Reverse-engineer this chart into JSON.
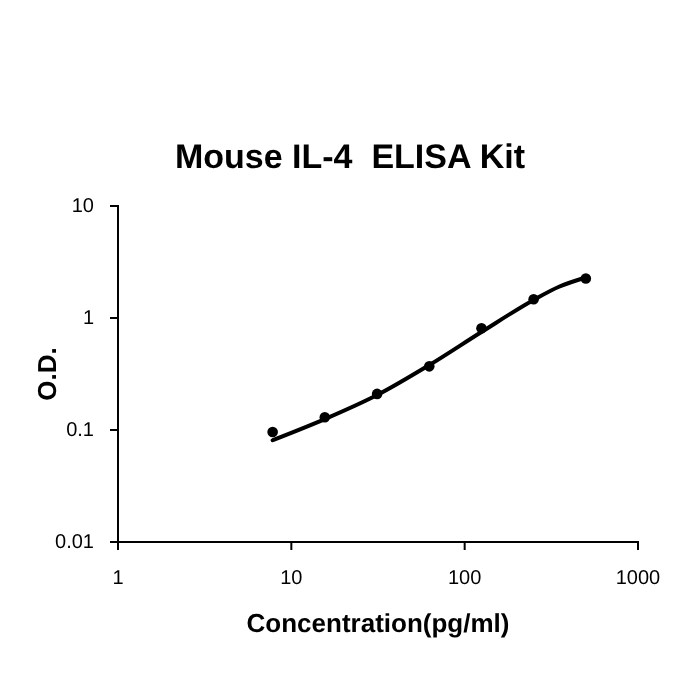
{
  "chart_data": {
    "type": "scatter",
    "title": "Mouse IL-4  ELISA Kit",
    "xlabel": "Concentration(pg/ml)",
    "ylabel": "O.D.",
    "log": "xy",
    "xlim": [
      1,
      1000
    ],
    "xticks": [
      1,
      10,
      100,
      1000
    ],
    "ylim": [
      0.01,
      10
    ],
    "yticks": [
      0.01,
      0.1,
      1,
      10
    ],
    "grid": false,
    "marker": "circle",
    "series": [
      {
        "color": "#000000",
        "x": [
          7.8,
          15.6,
          31.25,
          62.5,
          125,
          250,
          500
        ],
        "values": [
          0.096,
          0.13,
          0.21,
          0.37,
          0.81,
          1.47,
          2.25
        ]
      },
      {
        "type": "line",
        "color": "#000000",
        "line_style": "solid",
        "marker": "none",
        "x": [
          7.8,
          15.6,
          31.25,
          62.5,
          125,
          250,
          350,
          500
        ],
        "values": [
          0.081,
          0.125,
          0.205,
          0.38,
          0.75,
          1.45,
          1.9,
          2.3
        ]
      }
    ]
  }
}
